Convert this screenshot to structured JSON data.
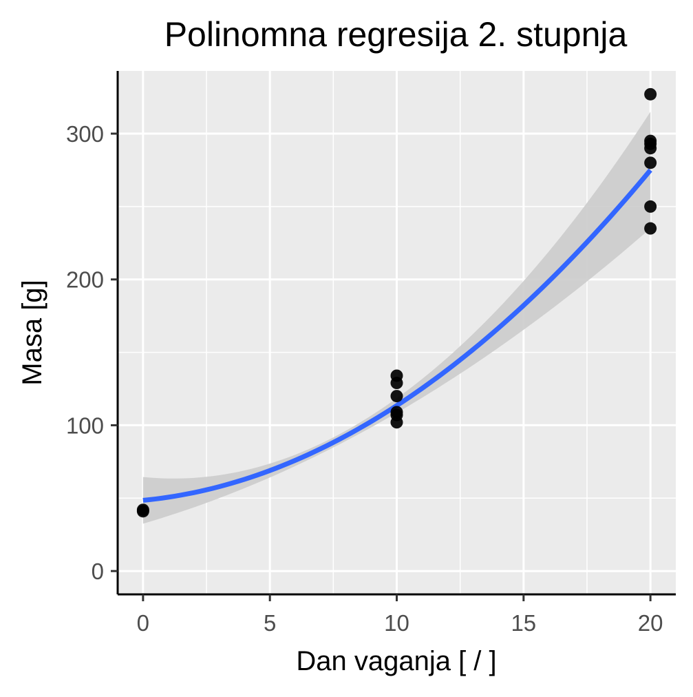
{
  "chart_data": {
    "type": "scatter",
    "title": "Polinomna regresija 2. stupnja",
    "xlabel": "Dan vaganja [ / ]",
    "ylabel": "Masa [g]",
    "xlim": [
      -1,
      21
    ],
    "ylim": [
      -16,
      343
    ],
    "x_ticks": [
      0,
      5,
      10,
      15,
      20
    ],
    "x_minor_ticks": [
      2.5,
      7.5,
      12.5,
      17.5
    ],
    "y_ticks": [
      0,
      100,
      200,
      300
    ],
    "y_minor_ticks": [
      50,
      150,
      250
    ],
    "x_tick_labels": [
      "0",
      "5",
      "10",
      "15",
      "20"
    ],
    "y_tick_labels": [
      "0",
      "100",
      "200",
      "300"
    ],
    "grid": true,
    "legend": "none",
    "points": [
      {
        "x": 0,
        "y": 41
      },
      {
        "x": 0,
        "y": 42
      },
      {
        "x": 10,
        "y": 134
      },
      {
        "x": 10,
        "y": 129
      },
      {
        "x": 10,
        "y": 120
      },
      {
        "x": 10,
        "y": 109
      },
      {
        "x": 10,
        "y": 107
      },
      {
        "x": 10,
        "y": 102
      },
      {
        "x": 20,
        "y": 327
      },
      {
        "x": 20,
        "y": 295
      },
      {
        "x": 20,
        "y": 293
      },
      {
        "x": 20,
        "y": 290
      },
      {
        "x": 20,
        "y": 280
      },
      {
        "x": 20,
        "y": 250
      },
      {
        "x": 20,
        "y": 235
      }
    ],
    "fit": {
      "method": "quadratic",
      "coefficients": {
        "a": 0.4825,
        "b": 1.675,
        "c": 48.5
      },
      "ci_halfwidth": {
        "d0": 16,
        "d1": -3.4,
        "d2": 0.23
      }
    },
    "colors": {
      "panel": "#EBEBEB",
      "grid": "#FFFFFF",
      "points": "#000000",
      "fit_line": "#3366FF",
      "ci_band": "#CCCCCC",
      "tick_text": "#4D4D4D",
      "axis_line": "#000000"
    }
  }
}
